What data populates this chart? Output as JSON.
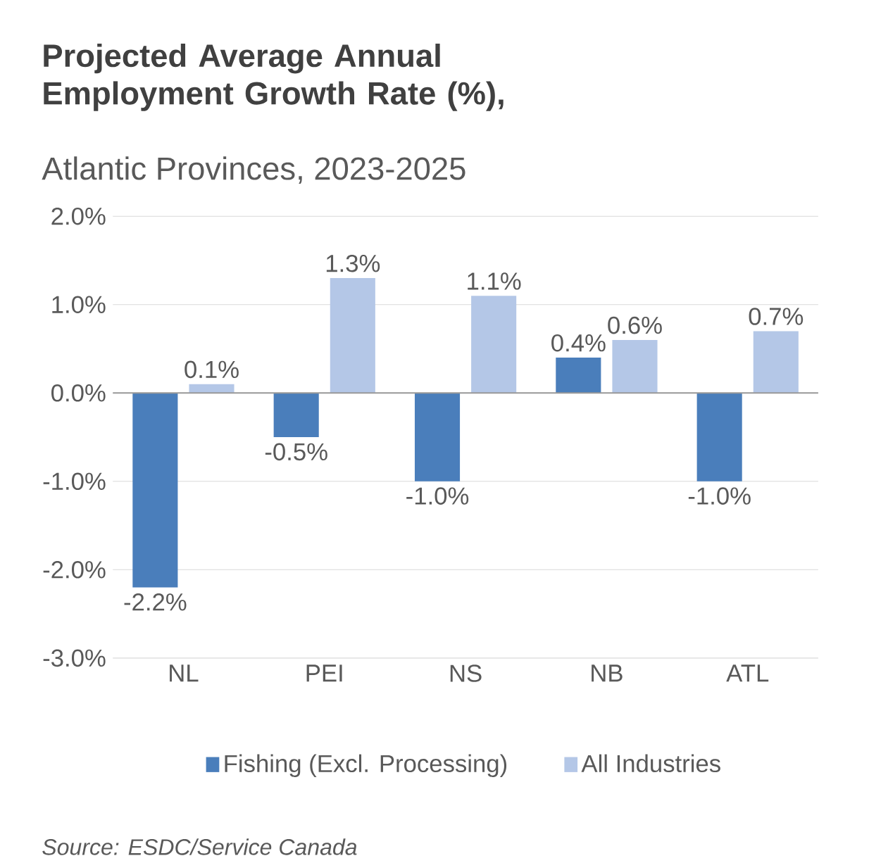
{
  "chart_data": {
    "type": "bar",
    "title": "Projected Average Annual Employment Growth Rate (%),",
    "subtitle": "Atlantic Provinces, 2023-2025",
    "categories": [
      "NL",
      "PEI",
      "NS",
      "NB",
      "ATL"
    ],
    "series": [
      {
        "name": "Fishing (Excl. Processing)",
        "color": "#4a7ebb",
        "values": [
          -2.2,
          -0.5,
          -1.0,
          0.4,
          -1.0
        ],
        "value_labels": [
          "-2.2%",
          "-0.5%",
          "-1.0%",
          "0.4%",
          "-1.0%"
        ]
      },
      {
        "name": "All Industries",
        "color": "#b4c7e7",
        "values": [
          0.1,
          1.3,
          1.1,
          0.6,
          0.7
        ],
        "value_labels": [
          "0.1%",
          "1.3%",
          "1.1%",
          "0.6%",
          "0.7%"
        ]
      }
    ],
    "ylim": [
      -3,
      2
    ],
    "yticks": [
      {
        "value": -3,
        "label": "-3.0%"
      },
      {
        "value": -2,
        "label": "-2.0%"
      },
      {
        "value": -1,
        "label": "-1.0%"
      },
      {
        "value": 0,
        "label": "0.0%"
      },
      {
        "value": 1,
        "label": "1.0%"
      },
      {
        "value": 2,
        "label": "2.0%"
      }
    ],
    "grid": "y",
    "legend": "bottom",
    "annotations": [
      "Source: ESDC/Service Canada"
    ]
  }
}
